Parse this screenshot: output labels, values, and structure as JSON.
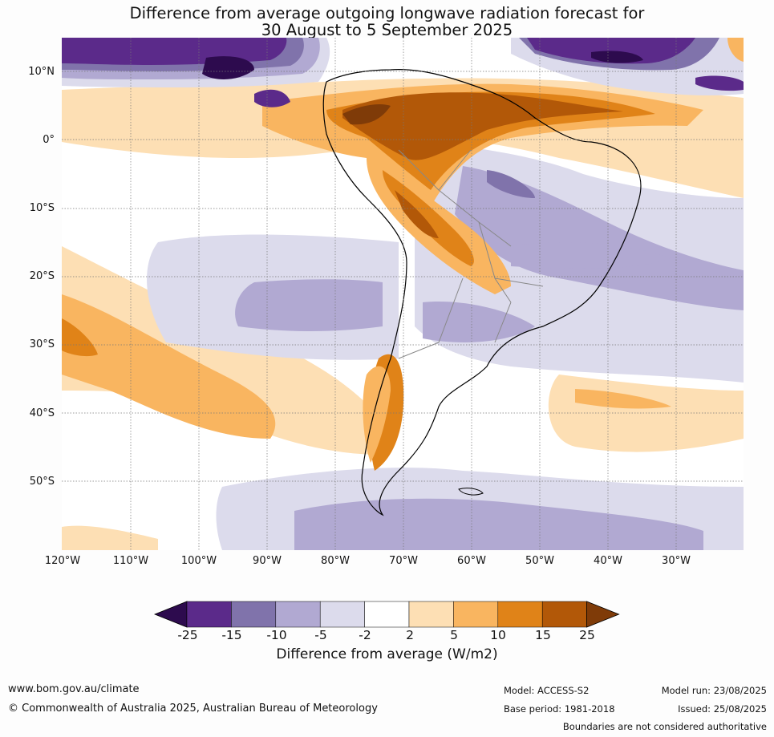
{
  "title": {
    "line1": "Difference from average outgoing longwave radiation forecast for",
    "line2": "30 August to 5 September 2025"
  },
  "map": {
    "region": "South America",
    "lat_labels": [
      "10°N",
      "0°",
      "10°S",
      "20°S",
      "30°S",
      "40°S",
      "50°S"
    ],
    "lon_labels": [
      "120°W",
      "110°W",
      "100°W",
      "90°W",
      "80°W",
      "70°W",
      "60°W",
      "50°W",
      "40°W",
      "30°W"
    ]
  },
  "legend": {
    "title": "Difference from average (W/m2)",
    "ticks": [
      "-25",
      "-15",
      "-10",
      "-5",
      "-2",
      "2",
      "5",
      "10",
      "15",
      "25"
    ],
    "colors": [
      "#2d0b4e",
      "#5b2a8a",
      "#8073ab",
      "#b1a9d2",
      "#dcdbec",
      "#ffffff",
      "#fddfb4",
      "#f9b560",
      "#e08318",
      "#b25808",
      "#7f3b08"
    ]
  },
  "footer": {
    "website": "www.bom.gov.au/climate",
    "copyright": "© Commonwealth of Australia 2025, Australian Bureau of Meteorology",
    "model": "Model: ACCESS-S2",
    "base_period": "Base period: 1981-2018",
    "model_run": "Model run: 23/08/2025",
    "issued": "Issued: 25/08/2025",
    "disclaimer": "Boundaries are not considered authoritative"
  }
}
